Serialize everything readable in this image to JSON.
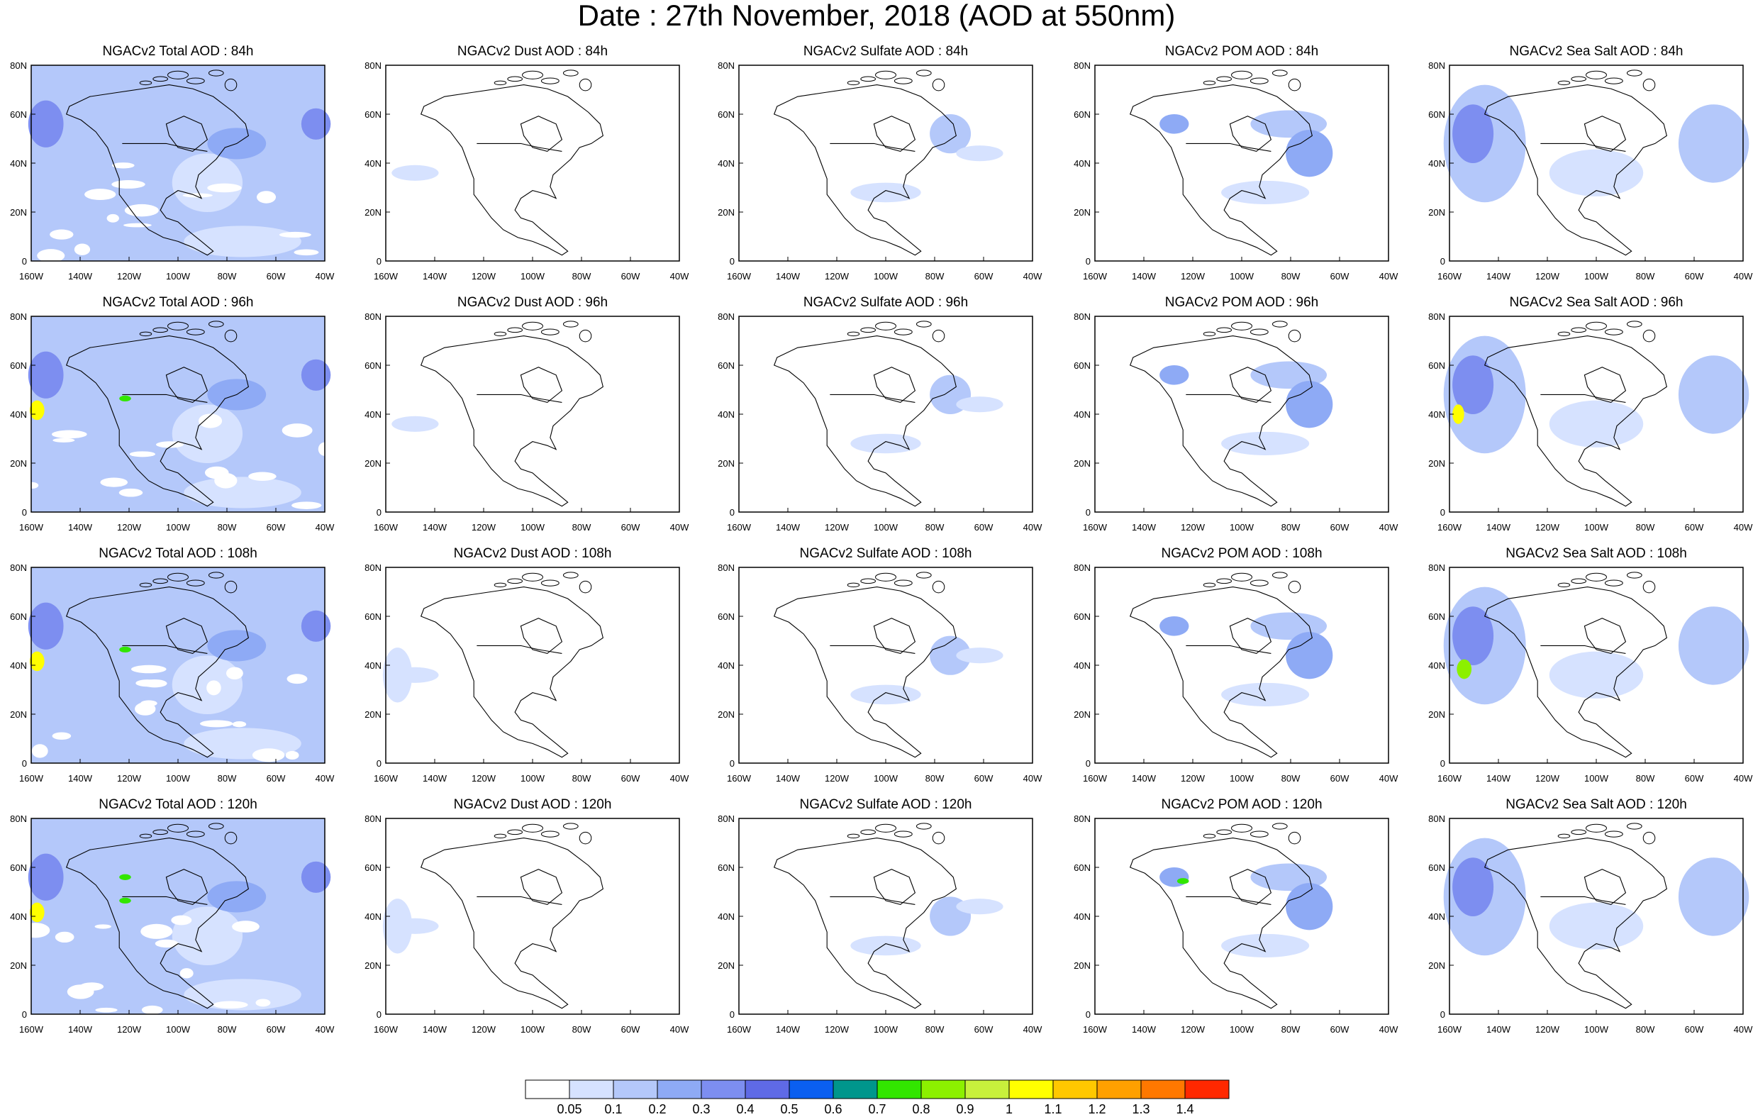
{
  "title": "Date : 27th November, 2018 (AOD at 550nm)",
  "panels": [
    [
      "NGACv2 Total AOD : 84h",
      "NGACv2 Dust AOD : 84h",
      "NGACv2 Sulfate AOD : 84h",
      "NGACv2 POM AOD : 84h",
      "NGACv2 Sea Salt AOD : 84h"
    ],
    [
      "NGACv2 Total AOD : 96h",
      "NGACv2 Dust AOD : 96h",
      "NGACv2 Sulfate AOD : 96h",
      "NGACv2 POM AOD : 96h",
      "NGACv2 Sea Salt AOD : 96h"
    ],
    [
      "NGACv2 Total AOD : 108h",
      "NGACv2 Dust AOD : 108h",
      "NGACv2 Sulfate AOD : 108h",
      "NGACv2 POM AOD : 108h",
      "NGACv2 Sea Salt AOD : 108h"
    ],
    [
      "NGACv2 Total AOD : 120h",
      "NGACv2 Dust AOD : 120h",
      "NGACv2 Sulfate AOD : 120h",
      "NGACv2 POM AOD : 120h",
      "NGACv2 Sea Salt  AOD : 120h"
    ]
  ],
  "lon_ticks": [
    "160W",
    "140W",
    "120W",
    "100W",
    "80W",
    "60W",
    "40W"
  ],
  "lat_ticks": [
    "80N",
    "60N",
    "40N",
    "20N",
    "0"
  ],
  "colorbar": {
    "colors": [
      "#ffffff",
      "#d6e2ff",
      "#b4c8fa",
      "#8eaaf5",
      "#7d8ef0",
      "#5f6ae6",
      "#0a5ff0",
      "#00968c",
      "#32e600",
      "#8cf000",
      "#c8f03c",
      "#ffff00",
      "#ffc800",
      "#ffa000",
      "#ff7800",
      "#ff2800"
    ],
    "labels": [
      "0.05",
      "0.1",
      "0.2",
      "0.3",
      "0.4",
      "0.5",
      "0.6",
      "0.7",
      "0.8",
      "0.9",
      "1",
      "1.1",
      "1.2",
      "1.3",
      "1.4"
    ]
  }
}
